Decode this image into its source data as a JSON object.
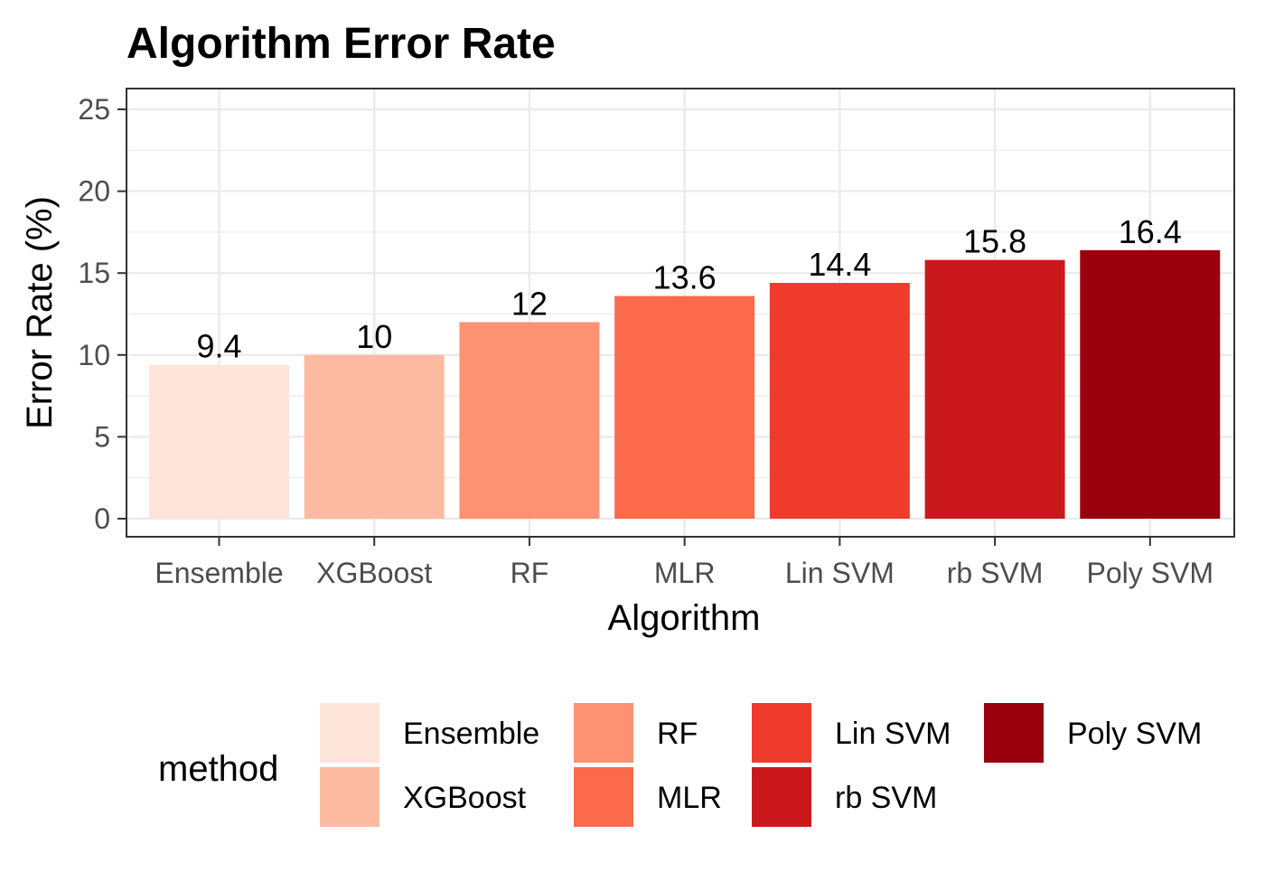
{
  "chart_data": {
    "type": "bar",
    "title": "Algorithm Error Rate",
    "xlabel": "Algorithm",
    "ylabel": "Error Rate (%)",
    "categories": [
      "Ensemble",
      "XGBoost",
      "RF",
      "MLR",
      "Lin SVM",
      "rb SVM",
      "Poly SVM"
    ],
    "values": [
      9.4,
      10,
      12,
      13.6,
      14.4,
      15.8,
      16.4
    ],
    "data_labels": [
      "9.4",
      "10",
      "12",
      "13.6",
      "14.4",
      "15.8",
      "16.4"
    ],
    "colors": [
      "#FEE5D9",
      "#FCBBA1",
      "#FC9272",
      "#FB6A4A",
      "#EF3B2C",
      "#CB181D",
      "#99000D"
    ],
    "ylim": [
      0,
      25
    ],
    "yticks": [
      "0",
      "5",
      "10",
      "15",
      "20",
      "25"
    ],
    "grid": true,
    "legend": {
      "title": "method",
      "position": "bottom",
      "entries": [
        "Ensemble",
        "XGBoost",
        "RF",
        "MLR",
        "Lin SVM",
        "rb SVM",
        "Poly SVM"
      ]
    }
  }
}
